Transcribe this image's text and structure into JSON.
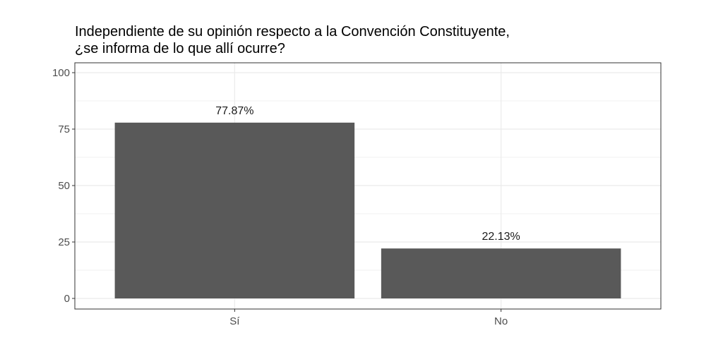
{
  "chart_data": {
    "type": "bar",
    "title": "Independiente de su opinión respecto a la Convención Constituyente,",
    "subtitle": "¿se informa de lo que allí ocurre?",
    "xlabel": "",
    "ylabel": "",
    "categories": [
      "Sí",
      "No"
    ],
    "values": [
      77.87,
      22.13
    ],
    "data_labels": [
      "77.87%",
      "22.13%"
    ],
    "ylim": [
      0,
      100
    ],
    "yticks": [
      0,
      25,
      50,
      75,
      100
    ],
    "ytick_labels": [
      "0",
      "25",
      "50",
      "75",
      "100"
    ],
    "grid": true,
    "legend": "none",
    "colors": {
      "bar": "#595959",
      "grid_major": "#ebebeb",
      "grid_minor": "#f2f2f2",
      "panel_border": "#333333"
    }
  }
}
